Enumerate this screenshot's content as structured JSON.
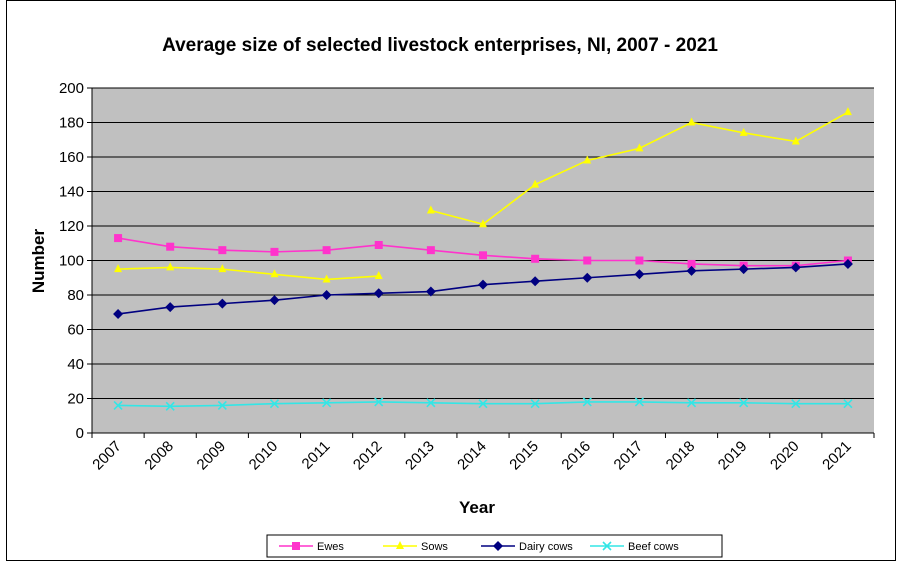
{
  "chart_data": {
    "type": "line",
    "title": "Average size of selected livestock enterprises, NI, 2007 - 2021",
    "xlabel": "Year",
    "ylabel": "Number",
    "ylim": [
      0,
      200
    ],
    "yticks": [
      0,
      20,
      40,
      60,
      80,
      100,
      120,
      140,
      160,
      180,
      200
    ],
    "grid": true,
    "legend_position": "bottom",
    "categories": [
      "2007",
      "2008",
      "2009",
      "2010",
      "2011",
      "2012",
      "2013",
      "2014",
      "2015",
      "2016",
      "2017",
      "2018",
      "2019",
      "2020",
      "2021"
    ],
    "series": [
      {
        "name": "Ewes",
        "color": "#ff33cc",
        "marker": "square",
        "values": [
          113,
          108,
          106,
          105,
          106,
          109,
          106,
          103,
          101,
          100,
          100,
          98,
          97,
          97,
          100
        ]
      },
      {
        "name": "Sows",
        "color": "#ffff00",
        "marker": "triangle",
        "values": [
          95,
          96,
          95,
          92,
          89,
          91,
          null,
          null,
          null,
          null,
          null,
          null,
          null,
          null,
          null
        ]
      },
      {
        "name": "Sows",
        "legend": false,
        "color": "#ffff00",
        "marker": "triangle",
        "values": [
          null,
          null,
          null,
          null,
          null,
          null,
          129,
          121,
          144,
          158,
          165,
          180,
          174,
          169,
          186
        ]
      },
      {
        "name": "Dairy cows",
        "color": "#000080",
        "marker": "diamond",
        "values": [
          69,
          73,
          75,
          77,
          80,
          81,
          82,
          86,
          88,
          90,
          92,
          94,
          95,
          96,
          98
        ]
      },
      {
        "name": "Beef cows",
        "color": "#33e6e6",
        "marker": "x",
        "values": [
          16,
          15.5,
          16,
          17,
          17.5,
          18,
          17.5,
          17,
          17,
          18,
          18,
          17.5,
          17.5,
          17,
          17
        ]
      }
    ]
  }
}
